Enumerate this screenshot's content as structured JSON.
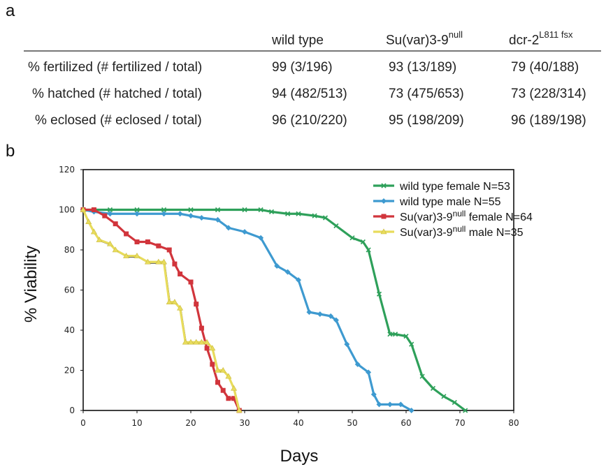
{
  "panel_a_label": "a",
  "panel_b_label": "b",
  "table": {
    "columns": [
      {
        "base": "wild type",
        "sup": ""
      },
      {
        "base": "Su(var)3-9",
        "sup": "null"
      },
      {
        "base": "dcr-2",
        "sup": "L811 fsx"
      }
    ],
    "rows": [
      {
        "label": "% fertilized (# fertilized / total)",
        "cells": [
          "99 (3/196)",
          "93 (13/189)",
          "79 (40/188)"
        ]
      },
      {
        "label": "% hatched (# hatched / total)",
        "cells": [
          "94 (482/513)",
          "73 (475/653)",
          "73 (228/314)"
        ]
      },
      {
        "label": "% eclosed (# eclosed / total)",
        "cells": [
          "96 (210/220)",
          "95 (198/209)",
          "96 (189/198)"
        ]
      }
    ]
  },
  "chart_data": {
    "type": "line",
    "xlabel": "Days",
    "ylabel": "% Viability",
    "xlim": [
      0,
      80
    ],
    "ylim": [
      0,
      120
    ],
    "xticks": [
      "0",
      "10",
      "20",
      "30",
      "40",
      "50",
      "60",
      "70",
      "80"
    ],
    "yticks": [
      "0",
      "20",
      "40",
      "60",
      "80",
      "100",
      "120"
    ],
    "grid": false,
    "legend_position": "top-right",
    "series": [
      {
        "name": "wild type female  N=53",
        "legend_base": "wild type female  N=53",
        "legend_sup": "",
        "legend_tail": "",
        "color": "#2ea05a",
        "marker": "x",
        "x": [
          0,
          2,
          5,
          10,
          15,
          20,
          25,
          30,
          33,
          35,
          38,
          40,
          43,
          45,
          47,
          50,
          52,
          53,
          55,
          57,
          58,
          60,
          61,
          63,
          65,
          67,
          69,
          71
        ],
        "y": [
          100,
          100,
          100,
          100,
          100,
          100,
          100,
          100,
          100,
          99,
          98,
          98,
          97,
          96,
          92,
          86,
          84,
          80,
          58,
          38,
          38,
          37,
          33,
          17,
          11,
          7,
          4,
          0
        ]
      },
      {
        "name": "wild type male  N=55",
        "legend_base": "wild type male  N=55",
        "legend_sup": "",
        "legend_tail": "",
        "color": "#3e9ad0",
        "marker": "diamond",
        "x": [
          0,
          2,
          5,
          10,
          15,
          18,
          20,
          22,
          25,
          27,
          30,
          33,
          36,
          38,
          40,
          42,
          44,
          46,
          47,
          49,
          51,
          53,
          54,
          55,
          57,
          59,
          61
        ],
        "y": [
          100,
          99,
          98,
          98,
          98,
          98,
          97,
          96,
          95,
          91,
          89,
          86,
          72,
          69,
          65,
          49,
          48,
          47,
          45,
          33,
          23,
          19,
          8,
          3,
          3,
          3,
          0
        ]
      },
      {
        "name": "Su(var)3-9null female  N=64",
        "legend_base": "Su(var)3-9",
        "legend_sup": "null",
        "legend_tail": " female  N=64",
        "color": "#d1353c",
        "marker": "square",
        "x": [
          0,
          2,
          4,
          6,
          8,
          10,
          12,
          14,
          16,
          17,
          18,
          20,
          21,
          22,
          23,
          24,
          25,
          26,
          27,
          28,
          29
        ],
        "y": [
          100,
          100,
          97,
          93,
          88,
          84,
          84,
          82,
          80,
          73,
          68,
          64,
          53,
          41,
          31,
          23,
          14,
          10,
          6,
          6,
          0
        ]
      },
      {
        "name": "Su(var)3-9null male  N=35",
        "legend_base": "Su(var)3-9",
        "legend_sup": "null",
        "legend_tail": " male  N=35",
        "color": "#e8dc5c",
        "marker": "triangle",
        "x": [
          0,
          1,
          2,
          3,
          5,
          6,
          8,
          10,
          12,
          14,
          15,
          16,
          17,
          18,
          19,
          20,
          21,
          22,
          23,
          24,
          25,
          26,
          27,
          28,
          29
        ],
        "y": [
          100,
          94,
          89,
          85,
          83,
          80,
          77,
          77,
          74,
          74,
          74,
          54,
          54,
          51,
          34,
          34,
          34,
          34,
          34,
          31,
          20,
          20,
          17,
          11,
          0
        ]
      }
    ]
  }
}
